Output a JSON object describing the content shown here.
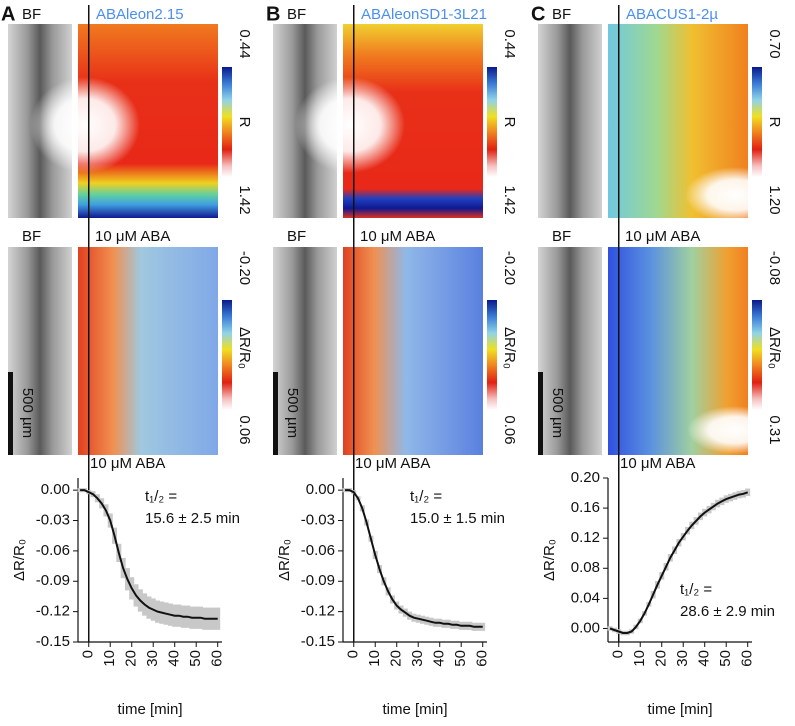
{
  "panels": [
    {
      "letter": "A",
      "bf_top": "BF",
      "sensor": "ABAleon2.15",
      "colorbar_top": [
        "0.44",
        "R",
        "1.42"
      ],
      "bf_bottom": "BF",
      "treatment": "10 μM ABA",
      "colorbar_bottom": [
        "-0.20",
        "ΔR/R₀",
        "0.06"
      ],
      "scale_bar": "500 µm"
    },
    {
      "letter": "B",
      "bf_top": "BF",
      "sensor": "ABAleonSD1-3L21",
      "colorbar_top": [
        "0.44",
        "R",
        "1.42"
      ],
      "bf_bottom": "BF",
      "treatment": "10 μM ABA",
      "colorbar_bottom": [
        "-0.20",
        "ΔR/R₀",
        "0.06"
      ],
      "scale_bar": "500 µm"
    },
    {
      "letter": "C",
      "bf_top": "BF",
      "sensor": "ABACUS1-2µ",
      "colorbar_top": [
        "0.70",
        "R",
        "1.20"
      ],
      "bf_bottom": "BF",
      "treatment": "10 μM ABA",
      "colorbar_bottom": [
        "-0.08",
        "ΔR/R₀",
        "0.31"
      ],
      "scale_bar": "500 µm"
    }
  ],
  "chart_data": [
    {
      "type": "line",
      "annotation_top": "10 μM ABA",
      "annotations": [
        "t₁/₂ =",
        "15.6 ± 2.5 min"
      ],
      "x_label": "time [min]",
      "y_label": "ΔR/R₀",
      "xlim": [
        -5,
        62
      ],
      "xticks": [
        0,
        10,
        20,
        30,
        40,
        50,
        60
      ],
      "ylim": [
        -0.15,
        0.012
      ],
      "yticks": [
        {
          "value": 0,
          "label": "0.00"
        },
        -0.03,
        -0.06,
        -0.09,
        -0.12,
        -0.15
      ],
      "error_color": "#c8c8c8",
      "x": [
        -4,
        -2,
        0,
        2,
        4,
        6,
        8,
        10,
        12,
        14,
        16,
        18,
        20,
        22,
        24,
        26,
        28,
        30,
        32,
        34,
        36,
        38,
        40,
        42,
        44,
        46,
        48,
        50,
        52,
        54,
        56,
        58,
        60
      ],
      "series": [
        {
          "color": "#111111",
          "values": [
            0,
            0,
            -0.002,
            -0.004,
            -0.008,
            -0.013,
            -0.02,
            -0.03,
            -0.045,
            -0.062,
            -0.077,
            -0.088,
            -0.097,
            -0.104,
            -0.109,
            -0.113,
            -0.116,
            -0.118,
            -0.12,
            -0.121,
            -0.122,
            -0.123,
            -0.124,
            -0.124,
            -0.125,
            -0.125,
            -0.126,
            -0.126,
            -0.126,
            -0.127,
            -0.127,
            -0.127,
            -0.127
          ],
          "errors": [
            0.002,
            0.002,
            0.002,
            0.003,
            0.004,
            0.005,
            0.006,
            0.007,
            0.008,
            0.009,
            0.01,
            0.011,
            0.011,
            0.011,
            0.011,
            0.011,
            0.011,
            0.011,
            0.011,
            0.011,
            0.011,
            0.011,
            0.011,
            0.011,
            0.011,
            0.011,
            0.011,
            0.011,
            0.011,
            0.011,
            0.011,
            0.011,
            0.011
          ]
        }
      ]
    },
    {
      "type": "line",
      "annotation_top": "10 μM ABA",
      "annotations": [
        "t₁/₂ =",
        "15.0 ± 1.5 min"
      ],
      "x_label": "time [min]",
      "y_label": "ΔR/R₀",
      "xlim": [
        -5,
        62
      ],
      "xticks": [
        0,
        10,
        20,
        30,
        40,
        50,
        60
      ],
      "ylim": [
        -0.15,
        0.012
      ],
      "yticks": [
        {
          "value": 0,
          "label": "0.00"
        },
        -0.03,
        -0.06,
        -0.09,
        -0.12,
        -0.15
      ],
      "error_color": "#c8c8c8",
      "x": [
        -4,
        -2,
        0,
        2,
        4,
        6,
        8,
        10,
        12,
        14,
        16,
        18,
        20,
        22,
        24,
        26,
        28,
        30,
        32,
        34,
        36,
        38,
        40,
        42,
        44,
        46,
        48,
        50,
        52,
        54,
        56,
        58,
        60
      ],
      "series": [
        {
          "color": "#111111",
          "values": [
            0,
            0,
            -0.002,
            -0.008,
            -0.018,
            -0.032,
            -0.048,
            -0.064,
            -0.078,
            -0.09,
            -0.1,
            -0.108,
            -0.114,
            -0.118,
            -0.121,
            -0.124,
            -0.126,
            -0.127,
            -0.128,
            -0.129,
            -0.13,
            -0.131,
            -0.131,
            -0.132,
            -0.132,
            -0.133,
            -0.133,
            -0.134,
            -0.134,
            -0.134,
            -0.135,
            -0.135,
            -0.135
          ],
          "errors": [
            0.002,
            0.002,
            0.002,
            0.002,
            0.003,
            0.003,
            0.003,
            0.004,
            0.004,
            0.004,
            0.004,
            0.004,
            0.004,
            0.004,
            0.004,
            0.004,
            0.004,
            0.004,
            0.004,
            0.004,
            0.004,
            0.004,
            0.004,
            0.004,
            0.004,
            0.004,
            0.004,
            0.004,
            0.004,
            0.004,
            0.004,
            0.004,
            0.004
          ]
        }
      ]
    },
    {
      "type": "line",
      "annotation_top": "10 μM ABA",
      "annotations": [
        "t₁/₂ =",
        "28.6 ± 2.9 min"
      ],
      "x_label": "time [min]",
      "y_label": "ΔR/R₀",
      "xlim": [
        -5,
        62
      ],
      "xticks": [
        0,
        10,
        20,
        30,
        40,
        50,
        60
      ],
      "ylim": [
        -0.018,
        0.2
      ],
      "yticks": [
        {
          "value": 0.2,
          "label": "0.20"
        },
        0.16,
        0.12,
        0.08,
        0.04,
        {
          "value": 0,
          "label": "0.00"
        }
      ],
      "error_color": "#c8c8c8",
      "x": [
        -4,
        -2,
        0,
        2,
        4,
        6,
        8,
        10,
        12,
        14,
        16,
        18,
        20,
        22,
        24,
        26,
        28,
        30,
        32,
        34,
        36,
        38,
        40,
        42,
        44,
        46,
        48,
        50,
        52,
        54,
        56,
        58,
        60
      ],
      "series": [
        {
          "color": "#111111",
          "values": [
            0,
            -0.002,
            -0.004,
            -0.006,
            -0.006,
            -0.004,
            0.002,
            0.01,
            0.02,
            0.032,
            0.045,
            0.058,
            0.07,
            0.082,
            0.094,
            0.104,
            0.114,
            0.122,
            0.13,
            0.137,
            0.143,
            0.149,
            0.154,
            0.158,
            0.162,
            0.166,
            0.169,
            0.172,
            0.174,
            0.176,
            0.178,
            0.179,
            0.181
          ],
          "errors": [
            0.003,
            0.003,
            0.003,
            0.003,
            0.003,
            0.003,
            0.003,
            0.003,
            0.003,
            0.003,
            0.005,
            0.005,
            0.005,
            0.005,
            0.005,
            0.005,
            0.005,
            0.005,
            0.005,
            0.005,
            0.005,
            0.005,
            0.005,
            0.005,
            0.005,
            0.005,
            0.005,
            0.005,
            0.005,
            0.005,
            0.005,
            0.005,
            0.005
          ]
        }
      ]
    }
  ]
}
